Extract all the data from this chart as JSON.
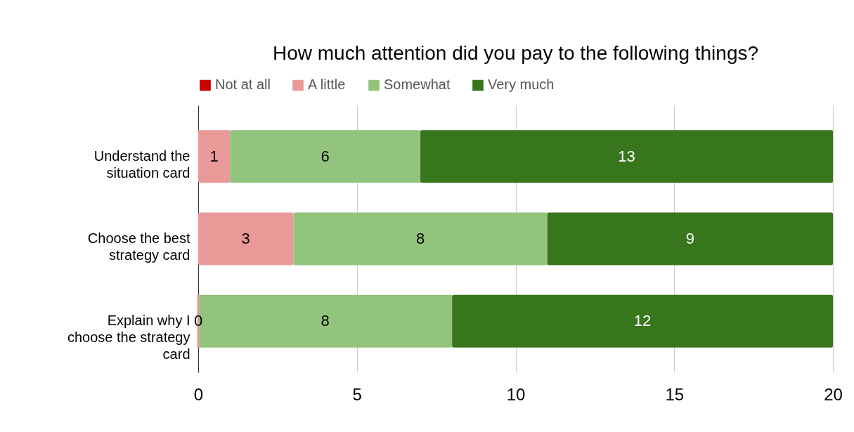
{
  "chart_data": {
    "type": "bar",
    "orientation": "horizontal",
    "stacked": true,
    "title": "How much attention did you pay to the following things?",
    "categories": [
      "Understand the situation card",
      "Choose the best strategy card",
      "Explain why I choose the strategy card"
    ],
    "series": [
      {
        "name": "Not at all",
        "color": "#cc0000",
        "values": [
          0,
          0,
          0
        ],
        "value_labels": [
          null,
          null,
          null
        ]
      },
      {
        "name": "A little",
        "color": "#ea9999",
        "values": [
          1,
          3,
          0
        ],
        "value_labels": [
          "1",
          "3",
          "0"
        ]
      },
      {
        "name": "Somewhat",
        "color": "#93c47d",
        "values": [
          6,
          8,
          8
        ],
        "value_labels": [
          "6",
          "8",
          "8"
        ]
      },
      {
        "name": "Very much",
        "color": "#38761d",
        "values": [
          13,
          9,
          12
        ],
        "value_labels": [
          "13",
          "9",
          "12"
        ]
      }
    ],
    "xlim": [
      0,
      20
    ],
    "xticks": [
      0,
      5,
      10,
      15,
      20
    ],
    "grid": "x",
    "legend": "top"
  }
}
